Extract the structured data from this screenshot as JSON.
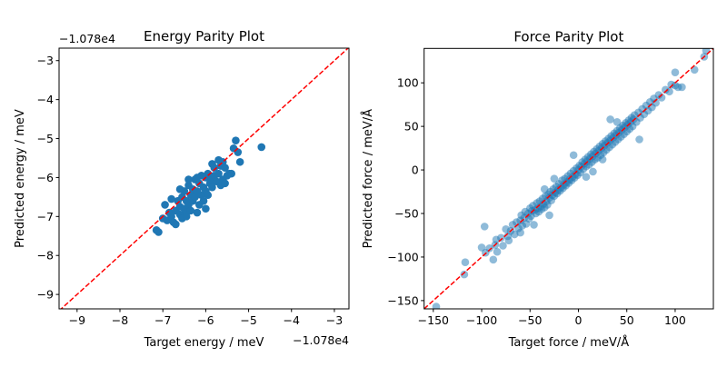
{
  "chart_data": [
    {
      "type": "scatter",
      "title": "Energy Parity Plot",
      "xlabel": "Target energy / meV",
      "ylabel": "Predicted energy / meV",
      "x_offset_label": "−1.078e4",
      "y_offset_label": "−1.078e4",
      "xlim": [
        -9.42,
        -2.66
      ],
      "ylim": [
        -9.37,
        -2.68
      ],
      "xticks": [
        -9,
        -8,
        -7,
        -6,
        -5,
        -4,
        -3
      ],
      "yticks": [
        -9,
        -8,
        -7,
        -6,
        -5,
        -4,
        -3
      ],
      "xtick_labels": [
        "−9",
        "−8",
        "−7",
        "−6",
        "−5",
        "−4",
        "−3"
      ],
      "ytick_labels": [
        "−9",
        "−8",
        "−7",
        "−6",
        "−5",
        "−4",
        "−3"
      ],
      "grid": false,
      "marker_color": "#1f77b4",
      "marker_alpha": 1.0,
      "reference_line_color": "#ff0000",
      "points": [
        [
          -7.15,
          -7.35
        ],
        [
          -7.1,
          -7.4
        ],
        [
          -7.0,
          -7.05
        ],
        [
          -6.95,
          -6.7
        ],
        [
          -6.9,
          -7.1
        ],
        [
          -6.85,
          -6.9
        ],
        [
          -6.8,
          -7.0
        ],
        [
          -6.75,
          -7.15
        ],
        [
          -6.7,
          -7.2
        ],
        [
          -6.7,
          -6.85
        ],
        [
          -6.65,
          -6.6
        ],
        [
          -6.6,
          -6.95
        ],
        [
          -6.6,
          -6.75
        ],
        [
          -6.55,
          -7.05
        ],
        [
          -6.55,
          -6.5
        ],
        [
          -6.5,
          -6.8
        ],
        [
          -6.5,
          -6.35
        ],
        [
          -6.45,
          -6.6
        ],
        [
          -6.45,
          -6.9
        ],
        [
          -6.4,
          -6.7
        ],
        [
          -6.4,
          -6.2
        ],
        [
          -6.35,
          -6.45
        ],
        [
          -6.35,
          -6.85
        ],
        [
          -6.3,
          -6.6
        ],
        [
          -6.3,
          -6.3
        ],
        [
          -6.25,
          -6.05
        ],
        [
          -6.25,
          -6.5
        ],
        [
          -6.2,
          -6.9
        ],
        [
          -6.2,
          -6.35
        ],
        [
          -6.15,
          -6.15
        ],
        [
          -6.15,
          -6.7
        ],
        [
          -6.1,
          -6.45
        ],
        [
          -6.1,
          -5.95
        ],
        [
          -6.05,
          -6.25
        ],
        [
          -6.05,
          -6.6
        ],
        [
          -6.0,
          -6.0
        ],
        [
          -6.0,
          -6.35
        ],
        [
          -5.95,
          -5.9
        ],
        [
          -5.95,
          -6.45
        ],
        [
          -5.9,
          -6.15
        ],
        [
          -5.9,
          -6.05
        ],
        [
          -5.85,
          -6.25
        ],
        [
          -5.8,
          -5.95
        ],
        [
          -5.75,
          -6.1
        ],
        [
          -5.7,
          -5.55
        ],
        [
          -5.7,
          -5.9
        ],
        [
          -5.65,
          -6.2
        ],
        [
          -5.65,
          -5.7
        ],
        [
          -5.6,
          -5.6
        ],
        [
          -5.6,
          -6.05
        ],
        [
          -5.55,
          -5.75
        ],
        [
          -5.55,
          -6.15
        ],
        [
          -5.5,
          -5.95
        ],
        [
          -5.45,
          -5.9
        ],
        [
          -5.35,
          -5.25
        ],
        [
          -5.3,
          -5.05
        ],
        [
          -5.25,
          -5.35
        ],
        [
          -5.2,
          -5.6
        ],
        [
          -5.4,
          -5.9
        ],
        [
          -4.7,
          -5.22
        ],
        [
          -6.8,
          -6.55
        ],
        [
          -6.6,
          -6.3
        ],
        [
          -6.4,
          -6.05
        ],
        [
          -6.2,
          -6.0
        ],
        [
          -5.8,
          -5.75
        ],
        [
          -6.45,
          -7.0
        ],
        [
          -6.0,
          -6.8
        ],
        [
          -5.85,
          -5.65
        ]
      ]
    },
    {
      "type": "scatter",
      "title": "Force Parity Plot",
      "xlabel": "Target force / meV/Å",
      "ylabel": "Predicted force / meV/Å",
      "xlim": [
        -159.5,
        139.5
      ],
      "ylim": [
        -159.5,
        139.5
      ],
      "xticks": [
        -150,
        -100,
        -50,
        0,
        50,
        100
      ],
      "yticks": [
        -150,
        -100,
        -50,
        0,
        50,
        100
      ],
      "xtick_labels": [
        "−150",
        "−100",
        "−50",
        "0",
        "50",
        "100"
      ],
      "ytick_labels": [
        "−150",
        "−100",
        "−50",
        "0",
        "50",
        "100"
      ],
      "grid": false,
      "marker_color": "#1f77b4",
      "marker_alpha": 0.5,
      "reference_line_color": "#ff0000",
      "points": [
        [
          -147,
          -157
        ],
        [
          -118,
          -120
        ],
        [
          -117,
          -106
        ],
        [
          -100,
          -89
        ],
        [
          -97,
          -65
        ],
        [
          -96,
          -95
        ],
        [
          -92,
          -90
        ],
        [
          -88,
          -103
        ],
        [
          -86,
          -86
        ],
        [
          -85,
          -80
        ],
        [
          -84,
          -94
        ],
        [
          -80,
          -78
        ],
        [
          -78,
          -87
        ],
        [
          -75,
          -68
        ],
        [
          -73,
          -76
        ],
        [
          -72,
          -81
        ],
        [
          -70,
          -70
        ],
        [
          -68,
          -63
        ],
        [
          -66,
          -74
        ],
        [
          -64,
          -60
        ],
        [
          -62,
          -67
        ],
        [
          -60,
          -58
        ],
        [
          -59,
          -52
        ],
        [
          -58,
          -64
        ],
        [
          -56,
          -55
        ],
        [
          -55,
          -48
        ],
        [
          -54,
          -62
        ],
        [
          -52,
          -50
        ],
        [
          -51,
          -56
        ],
        [
          -50,
          -44
        ],
        [
          -49,
          -53
        ],
        [
          -48,
          -47
        ],
        [
          -47,
          -41
        ],
        [
          -46,
          -63
        ],
        [
          -45,
          -46
        ],
        [
          -44,
          -50
        ],
        [
          -43,
          -38
        ],
        [
          -42,
          -44
        ],
        [
          -41,
          -48
        ],
        [
          -40,
          -36
        ],
        [
          -39,
          -42
        ],
        [
          -38,
          -45
        ],
        [
          -37,
          -33
        ],
        [
          -36,
          -39
        ],
        [
          -35,
          -43
        ],
        [
          -34,
          -30
        ],
        [
          -33,
          -36
        ],
        [
          -32,
          -40
        ],
        [
          -31,
          -28
        ],
        [
          -30,
          -52
        ],
        [
          -30,
          -32
        ],
        [
          -29,
          -25
        ],
        [
          -28,
          -35
        ],
        [
          -27,
          -29
        ],
        [
          -26,
          -22
        ],
        [
          -25,
          -30
        ],
        [
          -24,
          -26
        ],
        [
          -23,
          -19
        ],
        [
          -22,
          -27
        ],
        [
          -21,
          -23
        ],
        [
          -20,
          -16
        ],
        [
          -19,
          -24
        ],
        [
          -18,
          -20
        ],
        [
          -17,
          -12
        ],
        [
          -16,
          -21
        ],
        [
          -15,
          -17
        ],
        [
          -14,
          -10
        ],
        [
          -13,
          -18
        ],
        [
          -12,
          -14
        ],
        [
          -11,
          -7
        ],
        [
          -10,
          -15
        ],
        [
          -9,
          -11
        ],
        [
          -8,
          -4
        ],
        [
          -7,
          -12
        ],
        [
          -6,
          -8
        ],
        [
          -5,
          -1
        ],
        [
          -4,
          -9
        ],
        [
          -3,
          -5
        ],
        [
          -2,
          2
        ],
        [
          -1,
          -6
        ],
        [
          0,
          0
        ],
        [
          1,
          5
        ],
        [
          2,
          -3
        ],
        [
          3,
          4
        ],
        [
          4,
          9
        ],
        [
          5,
          1
        ],
        [
          6,
          7
        ],
        [
          7,
          12
        ],
        [
          8,
          4
        ],
        [
          9,
          10
        ],
        [
          10,
          15
        ],
        [
          11,
          6
        ],
        [
          12,
          13
        ],
        [
          13,
          18
        ],
        [
          14,
          9
        ],
        [
          15,
          16
        ],
        [
          16,
          21
        ],
        [
          17,
          12
        ],
        [
          18,
          19
        ],
        [
          19,
          24
        ],
        [
          20,
          14
        ],
        [
          21,
          22
        ],
        [
          22,
          27
        ],
        [
          23,
          17
        ],
        [
          24,
          25
        ],
        [
          25,
          30
        ],
        [
          26,
          20
        ],
        [
          27,
          28
        ],
        [
          28,
          33
        ],
        [
          29,
          23
        ],
        [
          30,
          31
        ],
        [
          31,
          36
        ],
        [
          32,
          26
        ],
        [
          33,
          58
        ],
        [
          33,
          34
        ],
        [
          34,
          39
        ],
        [
          35,
          29
        ],
        [
          36,
          37
        ],
        [
          37,
          42
        ],
        [
          38,
          32
        ],
        [
          39,
          40
        ],
        [
          40,
          45
        ],
        [
          41,
          35
        ],
        [
          42,
          43
        ],
        [
          43,
          48
        ],
        [
          44,
          38
        ],
        [
          45,
          46
        ],
        [
          46,
          51
        ],
        [
          47,
          41
        ],
        [
          48,
          49
        ],
        [
          49,
          54
        ],
        [
          50,
          44
        ],
        [
          51,
          52
        ],
        [
          52,
          57
        ],
        [
          53,
          47
        ],
        [
          54,
          55
        ],
        [
          55,
          60
        ],
        [
          56,
          50
        ],
        [
          57,
          58
        ],
        [
          58,
          63
        ],
        [
          60,
          55
        ],
        [
          62,
          66
        ],
        [
          63,
          35
        ],
        [
          64,
          60
        ],
        [
          66,
          70
        ],
        [
          68,
          64
        ],
        [
          70,
          74
        ],
        [
          72,
          68
        ],
        [
          74,
          78
        ],
        [
          76,
          72
        ],
        [
          78,
          82
        ],
        [
          80,
          77
        ],
        [
          83,
          86
        ],
        [
          86,
          83
        ],
        [
          90,
          92
        ],
        [
          94,
          90
        ],
        [
          96,
          98
        ],
        [
          100,
          112
        ],
        [
          100,
          97
        ],
        [
          103,
          95
        ],
        [
          107,
          95
        ],
        [
          120,
          115
        ],
        [
          130,
          130
        ],
        [
          132,
          137
        ],
        [
          -5,
          17
        ],
        [
          8,
          -8
        ],
        [
          25,
          12
        ],
        [
          -25,
          -10
        ],
        [
          40,
          55
        ],
        [
          -60,
          -72
        ],
        [
          15,
          -2
        ],
        [
          -35,
          -22
        ]
      ]
    }
  ]
}
